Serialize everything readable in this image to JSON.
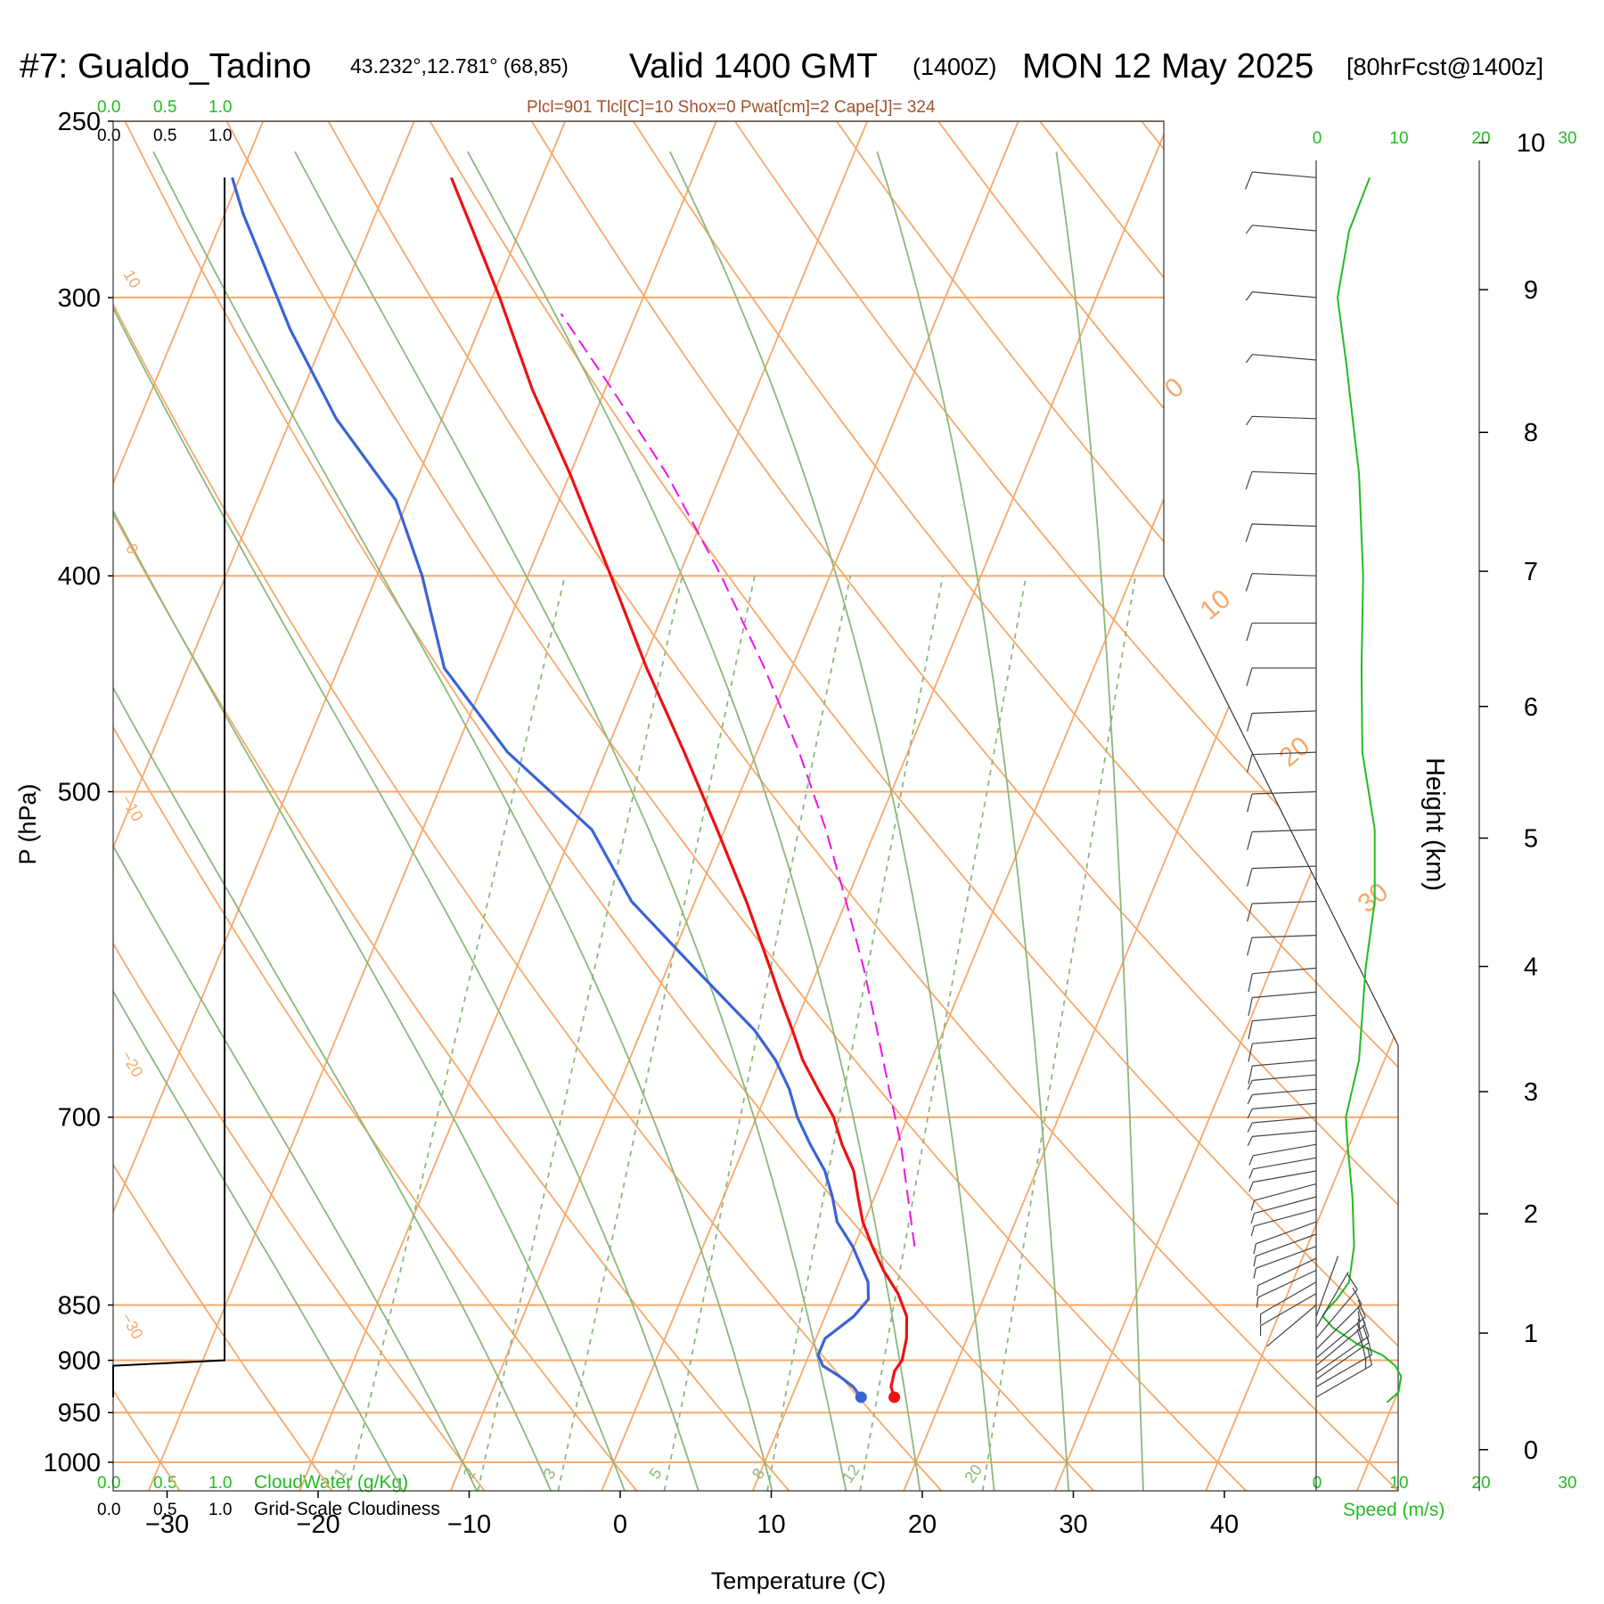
{
  "header": {
    "station": "#7: Gualdo_Tadino",
    "coords": "43.232°,12.781° (68,85)",
    "valid": "Valid 1400 GMT",
    "zulu": "(1400Z)",
    "date": "MON 12 May 2025",
    "forecast": "[80hrFcst@1400z]"
  },
  "indices": "Plcl=901 Tlcl[C]=10 Shox=0 Pwat[cm]=2 Cape[J]= 324",
  "cloud_scale": {
    "ticks": [
      "0.0",
      "0.5",
      "1.0"
    ],
    "cloudwater_label": "CloudWater (g/Kg)",
    "cloudiness_label": "Grid-Scale Cloudiness"
  },
  "speed_ticks": [
    "0",
    "10",
    "20",
    "30"
  ],
  "speed_label": "Speed (m/s)",
  "colors": {
    "temperature": "#ee1111",
    "dewpoint": "#3a63d6",
    "parcel": "#ee11ee",
    "isotherm": "#f6a86a",
    "dry_adiabat": "#f6a86a",
    "moist_adiabat": "#8ab87c",
    "mixing_ratio": "#8ab87c",
    "wind_speed": "#22bb22",
    "accent_green": "#22bb22",
    "indices_text": "#a0522d"
  },
  "chart_data": {
    "type": "line",
    "title": "#7: Gualdo_Tadino 43.232°,12.781° (68,85) Valid 1400 GMT (1400Z) MON 12 May 2025 [80hrFcst@1400z]",
    "xlabel": "Temperature (C)",
    "ylabel": "P (hPa)",
    "y2label": "Height (km)",
    "xlim": [
      -34,
      36
    ],
    "ylim": [
      1030,
      250
    ],
    "y_scale": "log (skew-T)",
    "x_ticks": [
      -30,
      -20,
      -10,
      0,
      10,
      20,
      30,
      40
    ],
    "pressure_ticks": [
      250,
      300,
      400,
      500,
      700,
      850,
      900,
      950,
      1000
    ],
    "height_ticks": [
      0,
      1,
      2,
      3,
      4,
      5,
      6,
      7,
      8,
      9,
      10
    ],
    "mixing_ratio_labels": [
      1,
      2,
      3,
      5,
      8,
      12,
      20
    ],
    "dry_adiabat_labels": [
      10,
      0,
      -10,
      -20,
      -30
    ],
    "moist_adiabat_labels": [
      0,
      10,
      20,
      30
    ],
    "series": [
      {
        "name": "Temperature",
        "pressure": [
          935,
          925,
          910,
          900,
          880,
          860,
          840,
          820,
          800,
          780,
          760,
          740,
          720,
          700,
          680,
          660,
          640,
          620,
          600,
          560,
          520,
          480,
          440,
          400,
          360,
          330,
          300,
          280,
          265
        ],
        "values": [
          16.8,
          16.3,
          16.1,
          16.3,
          16.0,
          15.4,
          14.2,
          12.6,
          11.2,
          9.9,
          8.9,
          7.9,
          6.4,
          5.1,
          3.3,
          1.5,
          0.0,
          -1.6,
          -3.2,
          -6.6,
          -10.5,
          -14.8,
          -19.6,
          -24.5,
          -30.0,
          -34.8,
          -39.5,
          -43.1,
          -46.0
        ]
      },
      {
        "name": "Dewpoint",
        "pressure": [
          935,
          925,
          915,
          905,
          895,
          880,
          860,
          845,
          830,
          800,
          780,
          760,
          740,
          720,
          700,
          680,
          660,
          640,
          600,
          560,
          520,
          480,
          440,
          400,
          370,
          340,
          310,
          290,
          275,
          265
        ],
        "values": [
          14.6,
          13.8,
          12.6,
          11.2,
          10.6,
          10.6,
          11.9,
          12.4,
          11.9,
          9.9,
          8.2,
          7.2,
          6.0,
          4.3,
          2.7,
          1.4,
          -0.3,
          -2.5,
          -8.2,
          -14.2,
          -18.8,
          -26.5,
          -33.0,
          -37.0,
          -40.8,
          -47.0,
          -52.5,
          -56.0,
          -58.8,
          -60.5
        ]
      },
      {
        "name": "Parcel",
        "pressure": [
          800,
          760,
          720,
          680,
          640,
          600,
          560,
          520,
          480,
          440,
          400,
          360,
          330,
          305
        ],
        "values": [
          14.0,
          12.2,
          10.3,
          8.0,
          5.6,
          3.0,
          0.0,
          -3.3,
          -7.2,
          -11.8,
          -17.2,
          -23.6,
          -29.5,
          -35.0
        ]
      }
    ],
    "cloud_profile": {
      "pressure": [
        935,
        905,
        900,
        265
      ],
      "values": [
        0.0,
        0.0,
        1.0,
        1.0
      ]
    },
    "wind": {
      "speed_pressure": [
        940,
        930,
        915,
        905,
        895,
        885,
        870,
        860,
        855,
        845,
        830,
        800,
        760,
        720,
        700,
        660,
        600,
        560,
        520,
        480,
        440,
        400,
        360,
        320,
        300,
        280,
        265
      ],
      "speed_ms": [
        8.6,
        10.0,
        10.3,
        9.6,
        8.0,
        5.0,
        2.0,
        0.8,
        1.2,
        2.5,
        4.0,
        4.6,
        4.4,
        3.8,
        3.6,
        5.2,
        6.0,
        7.1,
        7.1,
        5.6,
        5.5,
        5.7,
        5.2,
        3.6,
        2.6,
        4.0,
        6.5
      ],
      "barb_pressure": [
        935,
        925,
        918,
        912,
        905,
        898,
        890,
        880,
        870,
        860,
        850,
        840,
        830,
        820,
        810,
        800,
        790,
        780,
        770,
        760,
        750,
        740,
        730,
        720,
        710,
        700,
        690,
        680,
        670,
        660,
        645,
        630,
        615,
        600,
        580,
        560,
        540,
        520,
        500,
        480,
        460,
        440,
        420,
        400,
        380,
        360,
        340,
        320,
        300,
        280,
        265
      ],
      "barb_direction": [
        60,
        60,
        55,
        55,
        50,
        50,
        45,
        40,
        30,
        20,
        230,
        240,
        240,
        245,
        245,
        250,
        250,
        250,
        255,
        255,
        255,
        260,
        260,
        260,
        265,
        265,
        265,
        265,
        265,
        265,
        265,
        265,
        265,
        265,
        268,
        268,
        268,
        268,
        268,
        268,
        268,
        270,
        270,
        272,
        272,
        272,
        272,
        275,
        275,
        275,
        275
      ],
      "barb_speed_ms": [
        8.6,
        10.0,
        10.2,
        10.3,
        9.6,
        8.6,
        7.0,
        5.0,
        2.0,
        0.8,
        1.5,
        2.5,
        4.0,
        4.5,
        4.6,
        4.6,
        4.6,
        4.5,
        4.4,
        4.4,
        4.2,
        4.0,
        3.9,
        3.8,
        3.7,
        3.6,
        4.0,
        4.4,
        4.8,
        5.2,
        5.4,
        5.6,
        5.8,
        6.0,
        6.3,
        7.1,
        7.1,
        7.1,
        7.1,
        7.0,
        6.5,
        5.5,
        5.5,
        5.7,
        5.6,
        5.2,
        4.5,
        3.6,
        2.6,
        4.0,
        6.5
      ]
    }
  }
}
